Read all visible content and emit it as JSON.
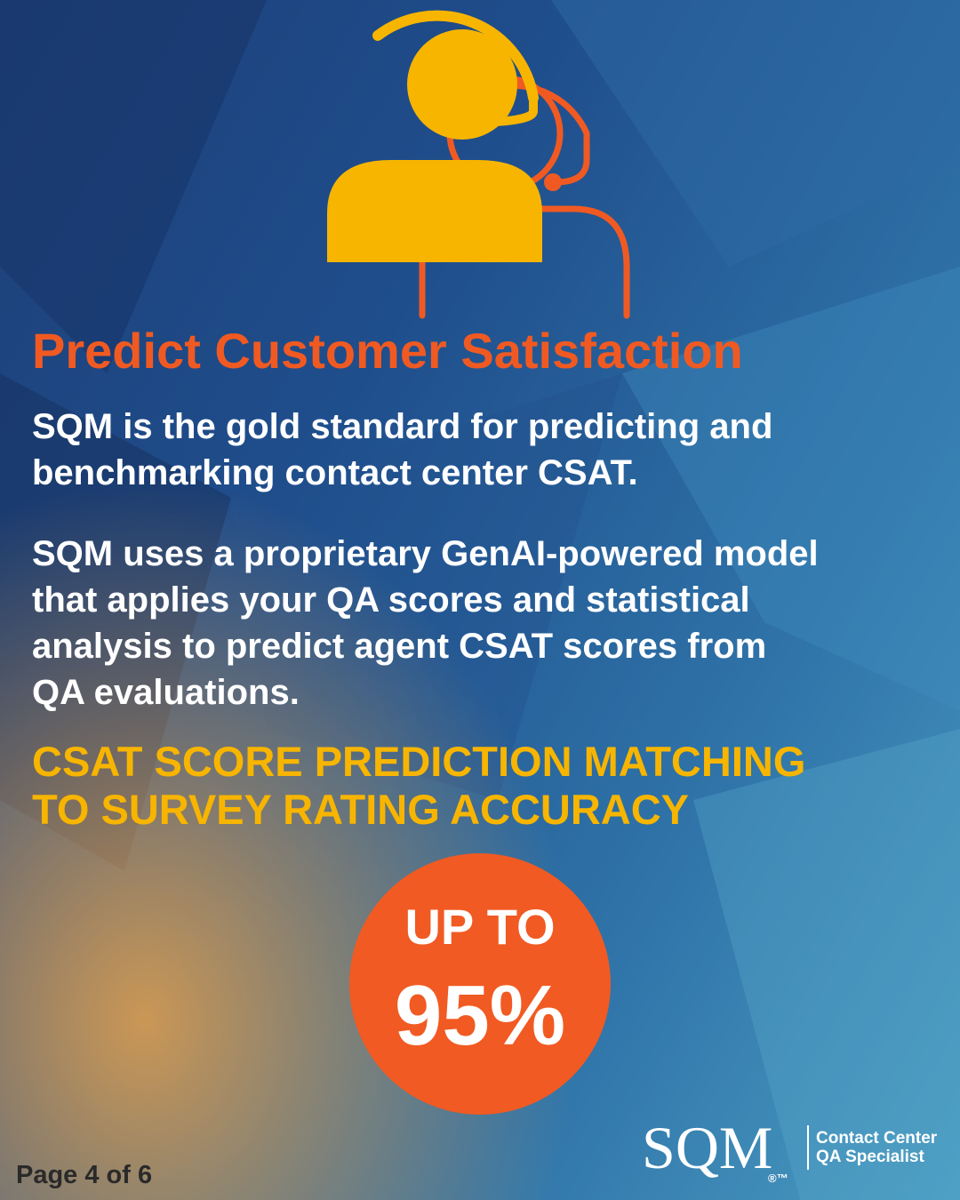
{
  "header": {
    "title": "Predict Customer Satisfaction"
  },
  "paragraphs": [
    [
      "SQM is the gold standard for predicting and",
      "benchmarking contact center CSAT."
    ],
    [
      "SQM uses a proprietary GenAI-powered model",
      "that applies your QA scores and statistical",
      "analysis to predict agent CSAT scores from",
      "QA evaluations."
    ]
  ],
  "highlight": [
    "CSAT SCORE PREDICTION MATCHING",
    "TO SURVEY RATING ACCURACY"
  ],
  "badge": {
    "label": "UP TO",
    "value": "95%"
  },
  "logo": {
    "name": "SQM",
    "mark": "®™",
    "tagline": [
      "Contact Center",
      "QA Specialist"
    ]
  },
  "footer": {
    "page": "Page 4 of 6"
  }
}
